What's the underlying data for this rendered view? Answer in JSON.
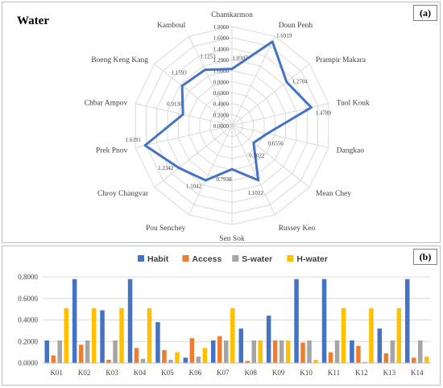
{
  "panel_a": {
    "label": "(a)",
    "title": "Water"
  },
  "panel_b": {
    "label": "(b)"
  },
  "chart_data": [
    {
      "type": "radar",
      "title": "Water",
      "ylim": [
        0,
        1.8
      ],
      "tick_labels": [
        "0.0000",
        "0.2000",
        "0.4000",
        "0.6000",
        "0.8000",
        "1.0000",
        "1.2000",
        "1.4000",
        "1.6000",
        "1.8000"
      ],
      "categories": [
        "Chamkarmon",
        "Doun Penh",
        "Prampir Makara",
        "Tuol Kouk",
        "Dangkao",
        "Mean Chey",
        "Russey Keo",
        "Sen Sok",
        "Pou Senchey",
        "Chroy Changvar",
        "Prek Pnov",
        "Chbar Ampov",
        "Boeng Keng Kang",
        "Kamboul"
      ],
      "values": [
        1.0307,
        1.6919,
        1.2704,
        1.4789,
        0.6556,
        0.5022,
        1.1022,
        0.7938,
        1.1042,
        1.2342,
        1.6191,
        0.913,
        1.1593,
        1.1253
      ],
      "value_labels": [
        "1.0307",
        "1.6919",
        "1.2704",
        "1.4789",
        "0.6556",
        "0.5022",
        "1.1022",
        "0.7938",
        "1.1042",
        "1.2342",
        "1.6191",
        "0.9130",
        "1.1593",
        "1.1253"
      ],
      "colors": {
        "series": "#4472c4",
        "grid": "#d9d9d9"
      }
    },
    {
      "type": "bar",
      "categories": [
        "K01",
        "K02",
        "K03",
        "K04",
        "K05",
        "K06",
        "K07",
        "K08",
        "K09",
        "K10",
        "K11",
        "K12",
        "K13",
        "K14"
      ],
      "ylim": [
        0,
        0.8
      ],
      "ytick_labels": [
        "0.0000",
        "0.2000",
        "0.4000",
        "0.6000",
        "0.8000"
      ],
      "legend_position": "top",
      "series": [
        {
          "name": "Habit",
          "color": "#4472c4",
          "values": [
            0.21,
            0.78,
            0.49,
            0.78,
            0.38,
            0.05,
            0.21,
            0.32,
            0.44,
            0.78,
            0.78,
            0.21,
            0.32,
            0.78
          ]
        },
        {
          "name": "Access",
          "color": "#ed7d31",
          "values": [
            0.07,
            0.17,
            0.03,
            0.14,
            0.12,
            0.23,
            0.25,
            0.02,
            0.21,
            0.19,
            0.1,
            0.16,
            0.09,
            0.05
          ]
        },
        {
          "name": "S-water",
          "color": "#a5a5a5",
          "values": [
            0.21,
            0.21,
            0.21,
            0.04,
            0.03,
            0.06,
            0.21,
            0.21,
            0.21,
            0.21,
            0.21,
            0.01,
            0.21,
            0.21
          ]
        },
        {
          "name": "H-water",
          "color": "#ffc000",
          "values": [
            0.51,
            0.51,
            0.51,
            0.51,
            0.1,
            0.14,
            0.51,
            0.21,
            0.21,
            0.03,
            0.51,
            0.51,
            0.51,
            0.06
          ]
        }
      ]
    }
  ]
}
